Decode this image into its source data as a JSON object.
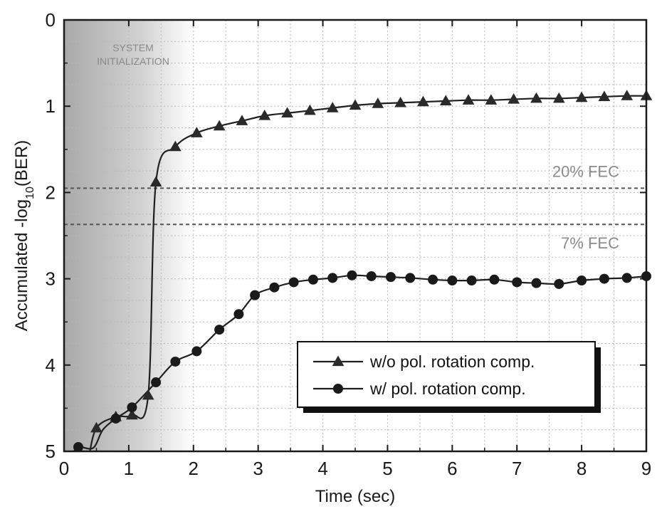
{
  "chart_data": {
    "type": "line",
    "xlabel": "Time (sec)",
    "ylabel": {
      "prefix": "Accumulated -log",
      "sub": "10",
      "suffix": "(BER)"
    },
    "xlim": [
      0,
      9
    ],
    "ylim": [
      0,
      5
    ],
    "y_inverted": true,
    "x_ticks": [
      "0",
      "1",
      "2",
      "3",
      "4",
      "5",
      "6",
      "7",
      "8",
      "9"
    ],
    "y_ticks": [
      "0",
      "1",
      "2",
      "3",
      "4",
      "5"
    ],
    "grid": true,
    "shaded_region": {
      "x_start": 0,
      "x_end": 2,
      "label_lines": [
        "SYSTEM",
        "INITIALIZATION"
      ]
    },
    "reference_lines": [
      {
        "y": 1.95,
        "label": "20% FEC"
      },
      {
        "y": 2.37,
        "label": "7% FEC"
      }
    ],
    "legend_position": "lower-right",
    "series": [
      {
        "name": "w/o pol. rotation comp.",
        "marker": "triangle",
        "x": [
          0.5,
          0.8,
          1.05,
          1.3,
          1.42,
          1.72,
          2.05,
          2.4,
          2.75,
          3.1,
          3.45,
          3.8,
          4.15,
          4.5,
          4.85,
          5.2,
          5.55,
          5.9,
          6.25,
          6.6,
          6.95,
          7.3,
          7.65,
          8.0,
          8.35,
          8.7,
          9.0
        ],
        "y": [
          4.73,
          4.6,
          4.58,
          4.35,
          1.88,
          1.47,
          1.31,
          1.23,
          1.17,
          1.11,
          1.08,
          1.05,
          1.02,
          0.99,
          0.97,
          0.96,
          0.95,
          0.94,
          0.93,
          0.93,
          0.92,
          0.91,
          0.91,
          0.9,
          0.89,
          0.88,
          0.88
        ]
      },
      {
        "name": "w/ pol. rotation comp.",
        "marker": "circle",
        "x": [
          0.22,
          0.8,
          1.05,
          1.42,
          1.72,
          2.05,
          2.4,
          2.7,
          2.95,
          3.25,
          3.55,
          3.85,
          4.15,
          4.45,
          4.75,
          5.05,
          5.35,
          5.7,
          6.0,
          6.3,
          6.65,
          7.0,
          7.3,
          7.65,
          8.0,
          8.35,
          8.7,
          9.0
        ],
        "y": [
          4.95,
          4.62,
          4.49,
          4.2,
          3.96,
          3.84,
          3.59,
          3.41,
          3.19,
          3.1,
          3.04,
          3.01,
          2.99,
          2.96,
          2.97,
          2.98,
          2.99,
          3.01,
          3.02,
          3.02,
          3.01,
          3.04,
          3.05,
          3.06,
          3.02,
          3.0,
          2.99,
          2.97
        ]
      }
    ]
  }
}
